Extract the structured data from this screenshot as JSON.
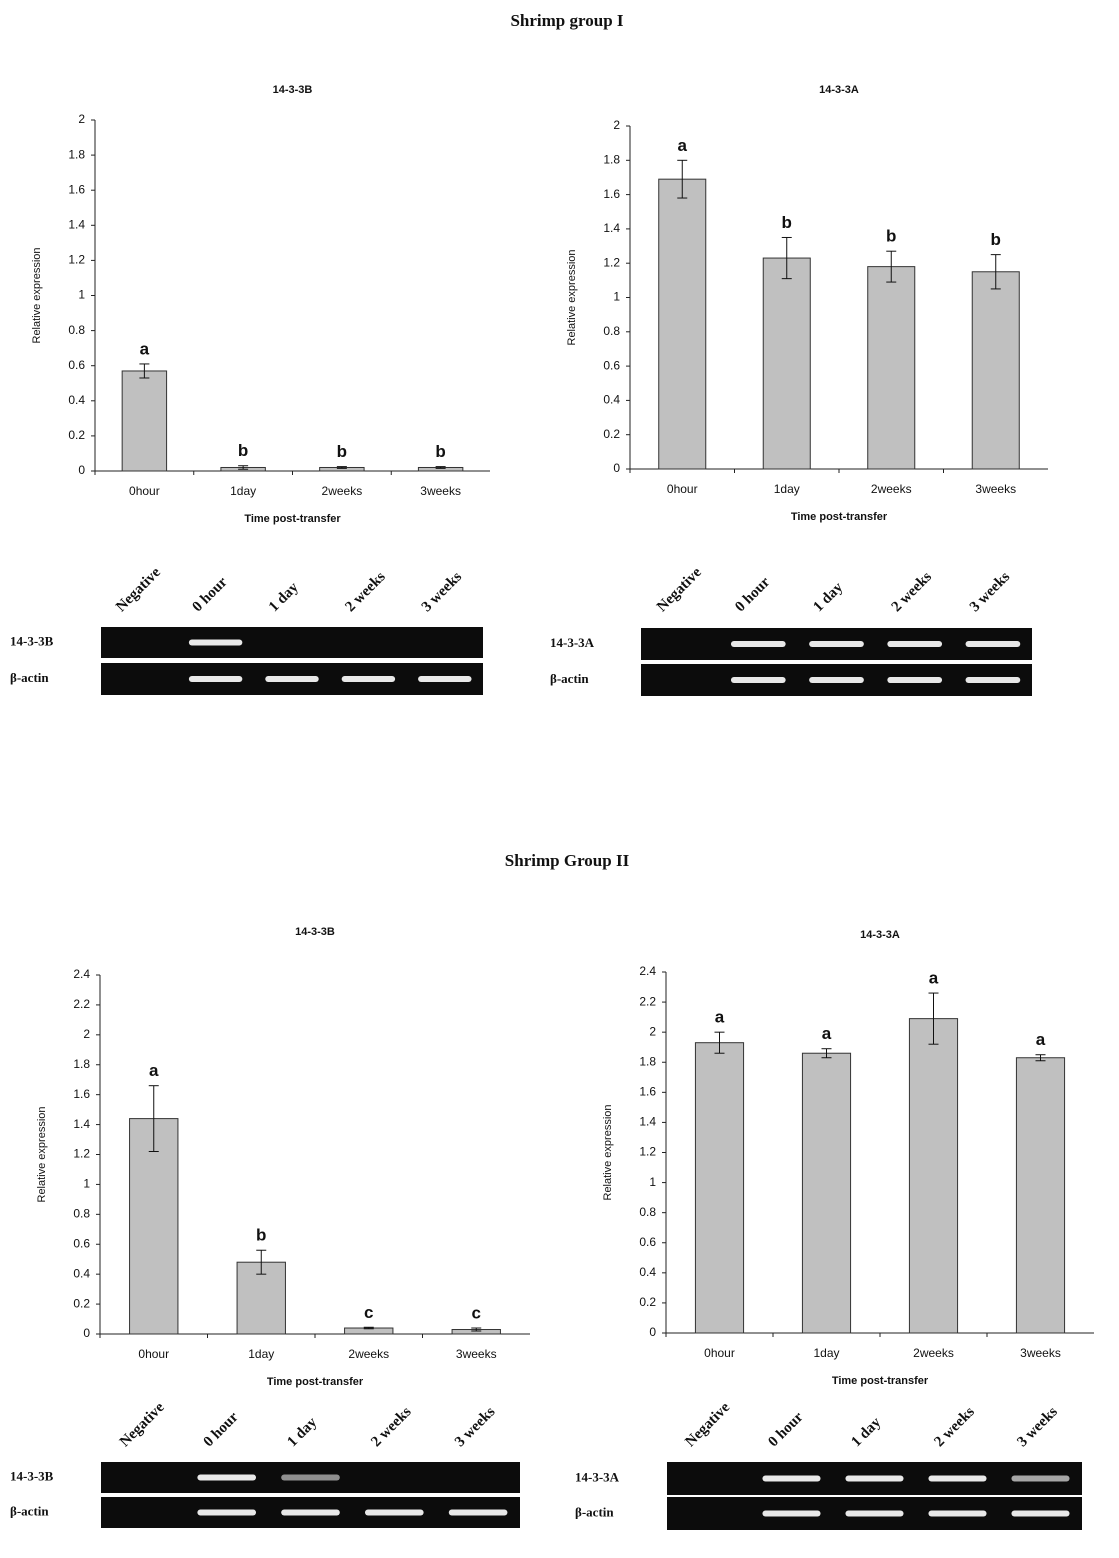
{
  "group_titles": [
    "Shrimp group I",
    "Shrimp Group II"
  ],
  "chart_data": [
    {
      "type": "bar",
      "title": "14-3-3B",
      "ylabel": "Relative expression",
      "xlabel": "Time post-transfer",
      "categories": [
        "0hour",
        "1day",
        "2weeks",
        "3weeks"
      ],
      "values": [
        0.57,
        0.02,
        0.02,
        0.02
      ],
      "errors": [
        0.04,
        0.01,
        0.005,
        0.005
      ],
      "annotations": [
        "a",
        "b",
        "b",
        "b"
      ],
      "color": "#c0c0c0",
      "ylim": [
        0,
        2
      ],
      "yticks": [
        0,
        0.2,
        0.4,
        0.6,
        0.8,
        1,
        1.2,
        1.4,
        1.6,
        1.8,
        2
      ]
    },
    {
      "type": "bar",
      "title": "14-3-3A",
      "ylabel": "Relative expression",
      "xlabel": "Time post-transfer",
      "categories": [
        "0hour",
        "1day",
        "2weeks",
        "3weeks"
      ],
      "values": [
        1.69,
        1.23,
        1.18,
        1.15
      ],
      "errors": [
        0.11,
        0.12,
        0.09,
        0.1
      ],
      "annotations": [
        "a",
        "b",
        "b",
        "b"
      ],
      "color": "#c0c0c0",
      "ylim": [
        0,
        2
      ],
      "yticks": [
        0,
        0.2,
        0.4,
        0.6,
        0.8,
        1,
        1.2,
        1.4,
        1.6,
        1.8,
        2
      ]
    },
    {
      "type": "bar",
      "title": "14-3-3B",
      "ylabel": "Relative expression",
      "xlabel": "Time post-transfer",
      "categories": [
        "0hour",
        "1day",
        "2weeks",
        "3weeks"
      ],
      "values": [
        1.44,
        0.48,
        0.04,
        0.03
      ],
      "errors": [
        0.22,
        0.08,
        0.005,
        0.01
      ],
      "annotations": [
        "a",
        "b",
        "c",
        "c"
      ],
      "color": "#c0c0c0",
      "ylim": [
        0,
        2.4
      ],
      "yticks": [
        0,
        0.2,
        0.4,
        0.6,
        0.8,
        1,
        1.2,
        1.4,
        1.6,
        1.8,
        2,
        2.2,
        2.4
      ]
    },
    {
      "type": "bar",
      "title": "14-3-3A",
      "ylabel": "Relative expression",
      "xlabel": "Time post-transfer",
      "categories": [
        "0hour",
        "1day",
        "2weeks",
        "3weeks"
      ],
      "values": [
        1.93,
        1.86,
        2.09,
        1.83
      ],
      "errors": [
        0.07,
        0.03,
        0.17,
        0.02
      ],
      "annotations": [
        "a",
        "a",
        "a",
        "a"
      ],
      "color": "#c0c0c0",
      "ylim": [
        0,
        2.4
      ],
      "yticks": [
        0,
        0.2,
        0.4,
        0.6,
        0.8,
        1,
        1.2,
        1.4,
        1.6,
        1.8,
        2,
        2.2,
        2.4
      ]
    }
  ],
  "gels": [
    {
      "lanes": [
        "Negative",
        "0 hour",
        "1 day",
        "2 weeks",
        "3 weeks"
      ],
      "rows": [
        "14-3-3B",
        "β-actin"
      ]
    },
    {
      "lanes": [
        "Negative",
        "0 hour",
        "1 day",
        "2 weeks",
        "3 weeks"
      ],
      "rows": [
        "14-3-3A",
        "β-actin"
      ]
    },
    {
      "lanes": [
        "Negative",
        "0 hour",
        "1 day",
        "2 weeks",
        "3 weeks"
      ],
      "rows": [
        "14-3-3B",
        "β-actin"
      ]
    },
    {
      "lanes": [
        "Negative",
        "0 hour",
        "1 day",
        "2 weeks",
        "3 weeks"
      ],
      "rows": [
        "14-3-3A",
        "β-actin"
      ]
    }
  ]
}
